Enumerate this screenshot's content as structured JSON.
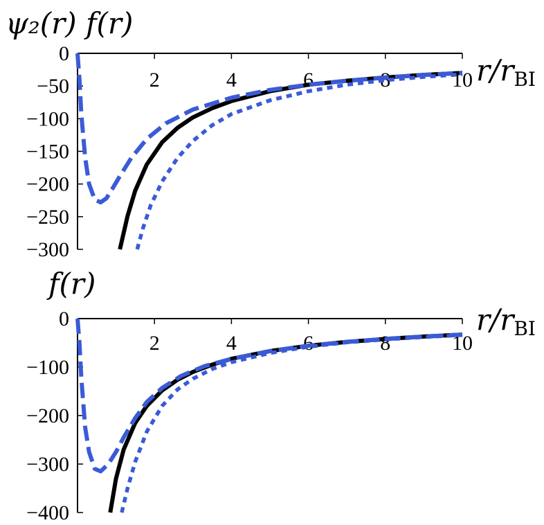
{
  "chart_data": [
    {
      "type": "line",
      "ylabel": "ψ₂(r) f(r)",
      "xlabel": "r/r_BI",
      "xlim": [
        0,
        10
      ],
      "ylim": [
        -300,
        0
      ],
      "x_ticks": [
        2,
        4,
        6,
        8,
        10
      ],
      "y_ticks": [
        0,
        -50,
        -100,
        -150,
        -200,
        -250,
        -300
      ],
      "grid": false,
      "series": [
        {
          "style": "solid",
          "color": "#000000",
          "x": [
            1.1,
            1.3,
            1.5,
            1.8,
            2.2,
            2.6,
            3.0,
            3.5,
            4.0,
            5.0,
            6.0,
            7.0,
            8.0,
            9.0,
            10.0
          ],
          "y": [
            -300,
            -249,
            -210,
            -170,
            -136,
            -114,
            -98,
            -84,
            -73,
            -58,
            -48,
            -42,
            -37,
            -33,
            -30
          ]
        },
        {
          "style": "dotted",
          "color": "#3b5bd6",
          "x": [
            1.55,
            1.7,
            1.9,
            2.2,
            2.6,
            3.0,
            3.5,
            4.0,
            5.0,
            6.0,
            7.0,
            8.0,
            9.0,
            10.0
          ],
          "y": [
            -300,
            -268,
            -233,
            -196,
            -160,
            -134,
            -110,
            -93,
            -72,
            -58,
            -48,
            -41,
            -36,
            -32
          ]
        },
        {
          "style": "dashed",
          "color": "#3b5bd6",
          "x": [
            0.0,
            0.05,
            0.1,
            0.2,
            0.3,
            0.45,
            0.6,
            0.75,
            0.9,
            1.1,
            1.4,
            1.8,
            2.3,
            3.0,
            4.0,
            5.0,
            6.0,
            7.0,
            8.0,
            9.0,
            10.0
          ],
          "y": [
            0,
            -40,
            -95,
            -160,
            -200,
            -224,
            -228,
            -222,
            -208,
            -188,
            -160,
            -131,
            -107,
            -86,
            -68,
            -56,
            -48,
            -42,
            -37,
            -33,
            -30
          ]
        }
      ]
    },
    {
      "type": "line",
      "ylabel": "f(r)",
      "xlabel": "r/r_BI",
      "xlim": [
        0,
        10
      ],
      "ylim": [
        -400,
        0
      ],
      "x_ticks": [
        2,
        4,
        6,
        8,
        10
      ],
      "y_ticks": [
        0,
        -100,
        -200,
        -300,
        -400
      ],
      "grid": false,
      "series": [
        {
          "style": "solid",
          "color": "#000000",
          "x": [
            0.85,
            1.0,
            1.2,
            1.5,
            1.8,
            2.2,
            2.6,
            3.0,
            3.5,
            4.0,
            5.0,
            6.0,
            7.0,
            8.0,
            9.0,
            10.0
          ],
          "y": [
            -400,
            -330,
            -270,
            -215,
            -180,
            -148,
            -126,
            -110,
            -95,
            -83,
            -67,
            -56,
            -48,
            -42,
            -37,
            -33
          ]
        },
        {
          "style": "dotted",
          "color": "#3b5bd6",
          "x": [
            1.15,
            1.3,
            1.5,
            1.8,
            2.2,
            2.6,
            3.0,
            3.5,
            4.0,
            5.0,
            6.0,
            7.0,
            8.0,
            9.0,
            10.0
          ],
          "y": [
            -400,
            -350,
            -295,
            -233,
            -180,
            -146,
            -124,
            -104,
            -90,
            -71,
            -58,
            -49,
            -43,
            -38,
            -34
          ]
        },
        {
          "style": "dashed",
          "color": "#3b5bd6",
          "x": [
            0.0,
            0.05,
            0.1,
            0.2,
            0.3,
            0.45,
            0.6,
            0.8,
            1.0,
            1.2,
            1.5,
            1.8,
            2.2,
            2.7,
            3.3,
            4.0,
            5.0,
            6.0,
            7.0,
            8.0,
            9.0,
            10.0
          ],
          "y": [
            0,
            -50,
            -125,
            -225,
            -275,
            -310,
            -315,
            -300,
            -275,
            -245,
            -205,
            -172,
            -143,
            -118,
            -98,
            -83,
            -67,
            -56,
            -48,
            -42,
            -37,
            -33
          ]
        }
      ]
    }
  ]
}
